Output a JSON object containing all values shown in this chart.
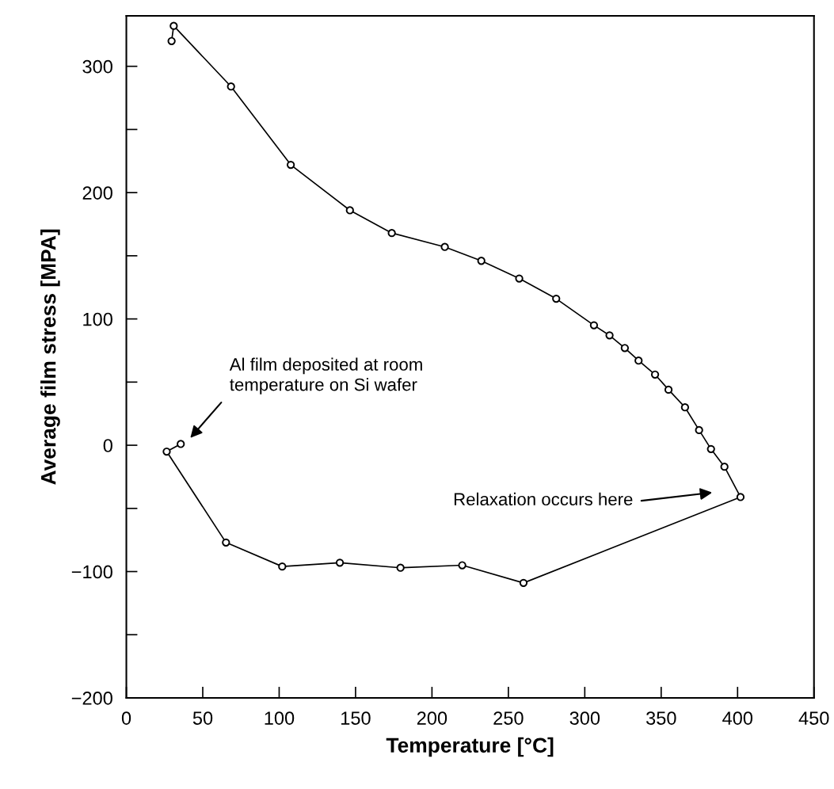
{
  "chart_data": {
    "type": "line",
    "xlabel": "Temperature [°C]",
    "ylabel": "Average film stress [MPA]",
    "series": [
      {
        "color": "#000000",
        "x": [
          35.6,
          26.4,
          65.2,
          102,
          139.7,
          179.4,
          219.8,
          259.9,
          401.9,
          391.4,
          382.6,
          374.8,
          365.6,
          354.8,
          346,
          335.2,
          326.2,
          316.2,
          306,
          281.3,
          257.1,
          232.3,
          208.4,
          173.7,
          146.3,
          107.6,
          68.5,
          31,
          29.6
        ],
        "values": [
          1,
          -5,
          -77,
          -96,
          -93,
          -97,
          -95,
          -109,
          -41,
          -17,
          -3,
          12,
          30,
          44,
          56,
          67,
          77,
          87,
          95,
          116,
          132,
          146,
          157,
          168,
          186,
          222,
          284,
          332,
          320
        ]
      }
    ],
    "xlim": [
      0,
      450
    ],
    "xticks": [
      0,
      50,
      100,
      150,
      200,
      250,
      300,
      350,
      400,
      450
    ],
    "ylim": [
      -200,
      340
    ],
    "yticks": [
      {
        "value": -200,
        "label": "−200"
      },
      {
        "value": -150,
        "label": null
      },
      {
        "value": -100,
        "label": "−100"
      },
      {
        "value": -50,
        "label": null
      },
      0,
      {
        "value": 50,
        "label": null
      },
      100,
      {
        "value": 150,
        "label": null
      },
      200,
      {
        "value": 250,
        "label": null
      },
      300
    ],
    "marker": "circle",
    "line_style": "solid",
    "grid": false,
    "legend": false,
    "annotations": [
      "Al film deposited at room\ntemperature on Si wafer",
      "Relaxation occurs here"
    ]
  }
}
